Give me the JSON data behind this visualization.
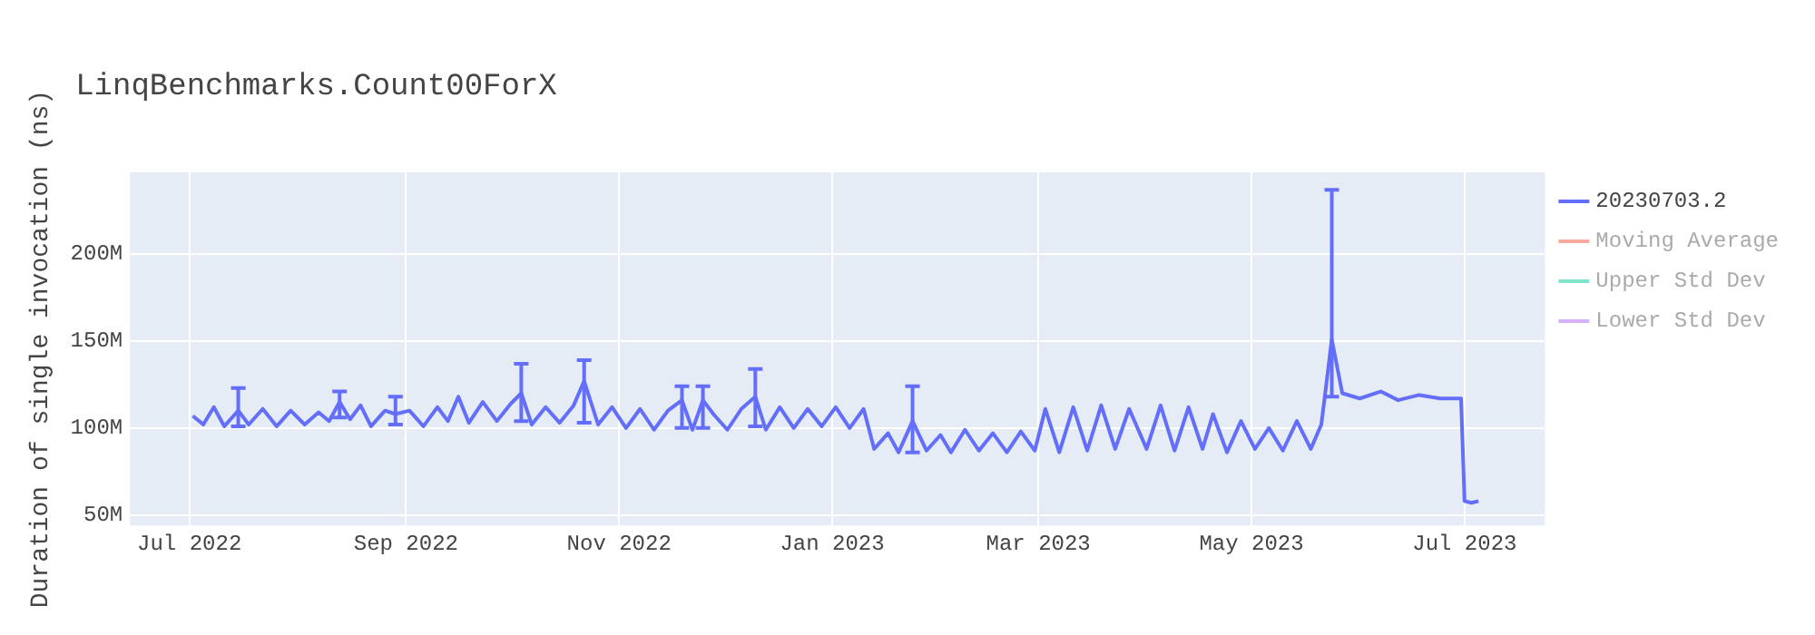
{
  "chart_data": {
    "type": "line",
    "title": "LinqBenchmarks.Count00ForX",
    "ylabel": "Duration of single invocation (ns)",
    "xlim": [
      "2022-06-14",
      "2023-07-24"
    ],
    "xticks": [
      {
        "value": "2022-07-01",
        "label": "Jul 2022"
      },
      {
        "value": "2022-09-01",
        "label": "Sep 2022"
      },
      {
        "value": "2022-11-01",
        "label": "Nov 2022"
      },
      {
        "value": "2023-01-01",
        "label": "Jan 2023"
      },
      {
        "value": "2023-03-01",
        "label": "Mar 2023"
      },
      {
        "value": "2023-05-01",
        "label": "May 2023"
      },
      {
        "value": "2023-07-01",
        "label": "Jul 2023"
      }
    ],
    "ylim": [
      44000000,
      247000000
    ],
    "yticks": [
      {
        "value": 50000000,
        "label": "50M"
      },
      {
        "value": 100000000,
        "label": "100M"
      },
      {
        "value": 150000000,
        "label": "150M"
      },
      {
        "value": 200000000,
        "label": "200M"
      }
    ],
    "grid": true,
    "legend": "top right",
    "marker": "none",
    "line_style": "solid",
    "series": [
      {
        "name": "20230703.2",
        "color": "#636efa",
        "x": [
          "2022-07-02",
          "2022-07-05",
          "2022-07-08",
          "2022-07-11",
          "2022-07-15",
          "2022-07-18",
          "2022-07-22",
          "2022-07-26",
          "2022-07-30",
          "2022-08-03",
          "2022-08-07",
          "2022-08-10",
          "2022-08-13",
          "2022-08-16",
          "2022-08-19",
          "2022-08-22",
          "2022-08-26",
          "2022-08-29",
          "2022-09-02",
          "2022-09-06",
          "2022-09-10",
          "2022-09-13",
          "2022-09-16",
          "2022-09-19",
          "2022-09-23",
          "2022-09-27",
          "2022-10-01",
          "2022-10-04",
          "2022-10-07",
          "2022-10-11",
          "2022-10-15",
          "2022-10-19",
          "2022-10-22",
          "2022-10-26",
          "2022-10-30",
          "2022-11-03",
          "2022-11-07",
          "2022-11-11",
          "2022-11-15",
          "2022-11-19",
          "2022-11-22",
          "2022-11-25",
          "2022-11-28",
          "2022-12-02",
          "2022-12-06",
          "2022-12-10",
          "2022-12-13",
          "2022-12-17",
          "2022-12-21",
          "2022-12-25",
          "2022-12-29",
          "2023-01-02",
          "2023-01-06",
          "2023-01-10",
          "2023-01-13",
          "2023-01-17",
          "2023-01-20",
          "2023-01-24",
          "2023-01-28",
          "2023-02-01",
          "2023-02-04",
          "2023-02-08",
          "2023-02-12",
          "2023-02-16",
          "2023-02-20",
          "2023-02-24",
          "2023-02-28",
          "2023-03-03",
          "2023-03-07",
          "2023-03-11",
          "2023-03-15",
          "2023-03-19",
          "2023-03-23",
          "2023-03-27",
          "2023-04-01",
          "2023-04-05",
          "2023-04-09",
          "2023-04-13",
          "2023-04-17",
          "2023-04-20",
          "2023-04-24",
          "2023-04-28",
          "2023-05-02",
          "2023-05-06",
          "2023-05-10",
          "2023-05-14",
          "2023-05-18",
          "2023-05-21",
          "2023-05-22",
          "2023-05-24",
          "2023-05-27",
          "2023-06-01",
          "2023-06-07",
          "2023-06-12",
          "2023-06-18",
          "2023-06-24",
          "2023-06-30",
          "2023-07-01",
          "2023-07-03",
          "2023-07-05"
        ],
        "values": [
          107000000,
          102000000,
          112000000,
          101000000,
          110000000,
          102000000,
          111000000,
          101000000,
          110000000,
          102000000,
          109000000,
          104000000,
          115000000,
          105000000,
          113000000,
          101000000,
          110000000,
          108000000,
          110000000,
          101000000,
          112000000,
          104000000,
          118000000,
          103000000,
          115000000,
          104000000,
          114000000,
          120000000,
          102000000,
          112000000,
          103000000,
          113000000,
          127000000,
          102000000,
          112000000,
          100000000,
          111000000,
          99000000,
          110000000,
          116000000,
          99000000,
          116000000,
          108000000,
          99000000,
          111000000,
          118000000,
          99000000,
          112000000,
          100000000,
          111000000,
          101000000,
          112000000,
          100000000,
          111000000,
          88000000,
          97000000,
          86000000,
          104000000,
          87000000,
          96000000,
          86000000,
          99000000,
          87000000,
          97000000,
          86000000,
          98000000,
          87000000,
          111000000,
          86000000,
          112000000,
          87000000,
          113000000,
          88000000,
          111000000,
          88000000,
          113000000,
          87000000,
          112000000,
          88000000,
          108000000,
          86000000,
          104000000,
          88000000,
          100000000,
          87000000,
          104000000,
          88000000,
          102000000,
          118000000,
          151000000,
          120000000,
          117000000,
          121000000,
          116000000,
          119000000,
          117000000,
          117000000,
          58000000,
          57000000,
          58000000
        ],
        "errors": [
          null,
          null,
          null,
          null,
          [
            101000000,
            123000000
          ],
          null,
          null,
          null,
          null,
          null,
          null,
          null,
          [
            106000000,
            121000000
          ],
          null,
          null,
          null,
          null,
          [
            102000000,
            118000000
          ],
          null,
          null,
          null,
          null,
          null,
          null,
          null,
          null,
          null,
          [
            104000000,
            137000000
          ],
          null,
          null,
          null,
          null,
          [
            103000000,
            139000000
          ],
          null,
          null,
          null,
          null,
          null,
          null,
          [
            100000000,
            124000000
          ],
          null,
          [
            100000000,
            124000000
          ],
          null,
          null,
          null,
          [
            101000000,
            134000000
          ],
          null,
          null,
          null,
          null,
          null,
          null,
          null,
          null,
          null,
          null,
          null,
          [
            86000000,
            124000000
          ],
          null,
          null,
          null,
          null,
          null,
          null,
          null,
          null,
          null,
          null,
          null,
          null,
          null,
          null,
          null,
          null,
          null,
          null,
          null,
          null,
          null,
          null,
          null,
          null,
          null,
          null,
          null,
          null,
          null,
          null,
          null,
          [
            118000000,
            237000000
          ],
          null,
          null,
          null,
          null,
          null,
          null,
          null,
          null,
          null,
          null
        ]
      },
      {
        "name": "Moving Average",
        "color": "#f7aa9d"
      },
      {
        "name": "Upper Std Dev",
        "color": "#80e5cb"
      },
      {
        "name": "Lower Std Dev",
        "color": "#d5b1fc"
      }
    ]
  }
}
